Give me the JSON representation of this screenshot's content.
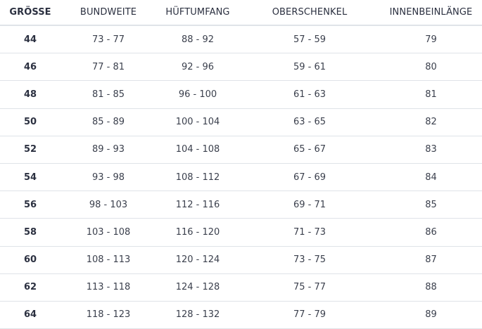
{
  "table": {
    "headers": [
      "GRÖSSE",
      "BUNDWEITE",
      "HÜFTUMFANG",
      "OBERSCHENKEL",
      "INNENBEINLÄNGE"
    ],
    "rows": [
      [
        "44",
        "73 - 77",
        "88 - 92",
        "57 - 59",
        "79"
      ],
      [
        "46",
        "77 - 81",
        "92 - 96",
        "59 - 61",
        "80"
      ],
      [
        "48",
        "81 - 85",
        "96 - 100",
        "61 - 63",
        "81"
      ],
      [
        "50",
        "85 - 89",
        "100 - 104",
        "63 - 65",
        "82"
      ],
      [
        "52",
        "89 - 93",
        "104 - 108",
        "65 - 67",
        "83"
      ],
      [
        "54",
        "93 - 98",
        "108 - 112",
        "67 - 69",
        "84"
      ],
      [
        "56",
        "98 - 103",
        "112 - 116",
        "69 - 71",
        "85"
      ],
      [
        "58",
        "103 - 108",
        "116 - 120",
        "71 - 73",
        "86"
      ],
      [
        "60",
        "108 - 113",
        "120 - 124",
        "73 - 75",
        "87"
      ],
      [
        "62",
        "113 - 118",
        "124 - 128",
        "75 - 77",
        "88"
      ],
      [
        "64",
        "118 - 123",
        "128 - 132",
        "77 - 79",
        "89"
      ]
    ]
  }
}
